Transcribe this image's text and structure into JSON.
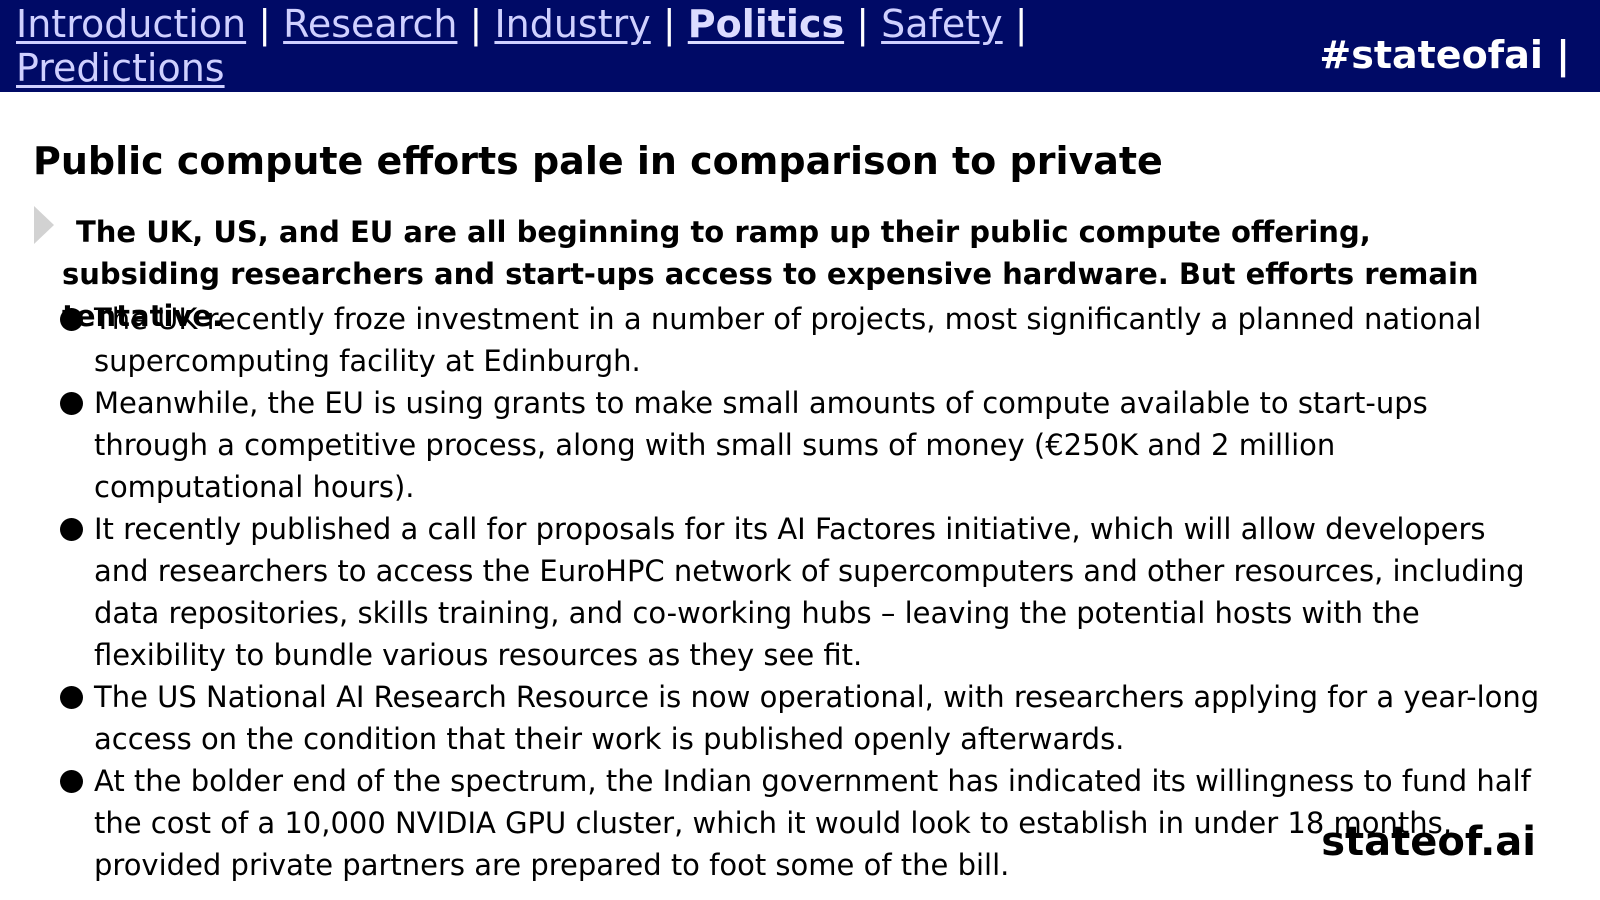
{
  "nav": {
    "items": [
      {
        "label": "Introduction"
      },
      {
        "label": "Research"
      },
      {
        "label": "Industry"
      },
      {
        "label": "Politics"
      },
      {
        "label": "Safety"
      },
      {
        "label": "Predictions"
      }
    ],
    "separator": "|",
    "hashtag": "#stateofai |"
  },
  "slide": {
    "title": "Public compute efforts pale in comparison to private",
    "summary": "The UK, US, and EU are all beginning to ramp up their public compute offering, subsiding researchers and start-ups access to expensive hardware. But efforts remain tentative.",
    "bullets": [
      "The UK recently froze investment in a number of projects, most significantly a planned national supercomputing facility at Edinburgh.",
      "Meanwhile, the EU is using grants to make small amounts of compute available to start-ups through a competitive process, along with small sums of money (€250K and 2 million computational hours).",
      "It recently published a call for proposals for its AI Factores initiative, which will allow developers and researchers to access the EuroHPC network of supercomputers and other resources, including data repositories, skills training, and co-working hubs – leaving the potential hosts with the flexibility to bundle various resources as they see fit.",
      "The US National AI Research Resource is now operational, with researchers applying for a year-long access on the condition that their work is published openly afterwards.",
      "At the bolder end of the spectrum, the Indian government has indicated its willingness to fund half the cost of a 10,000 NVIDIA GPU cluster, which it would look to establish in under 18 months, provided private partners are prepared to foot some of the bill."
    ]
  },
  "footer": {
    "brand": "stateof.ai"
  },
  "colors": {
    "header_bg": "#000a66",
    "link": "#cfd0ff"
  }
}
